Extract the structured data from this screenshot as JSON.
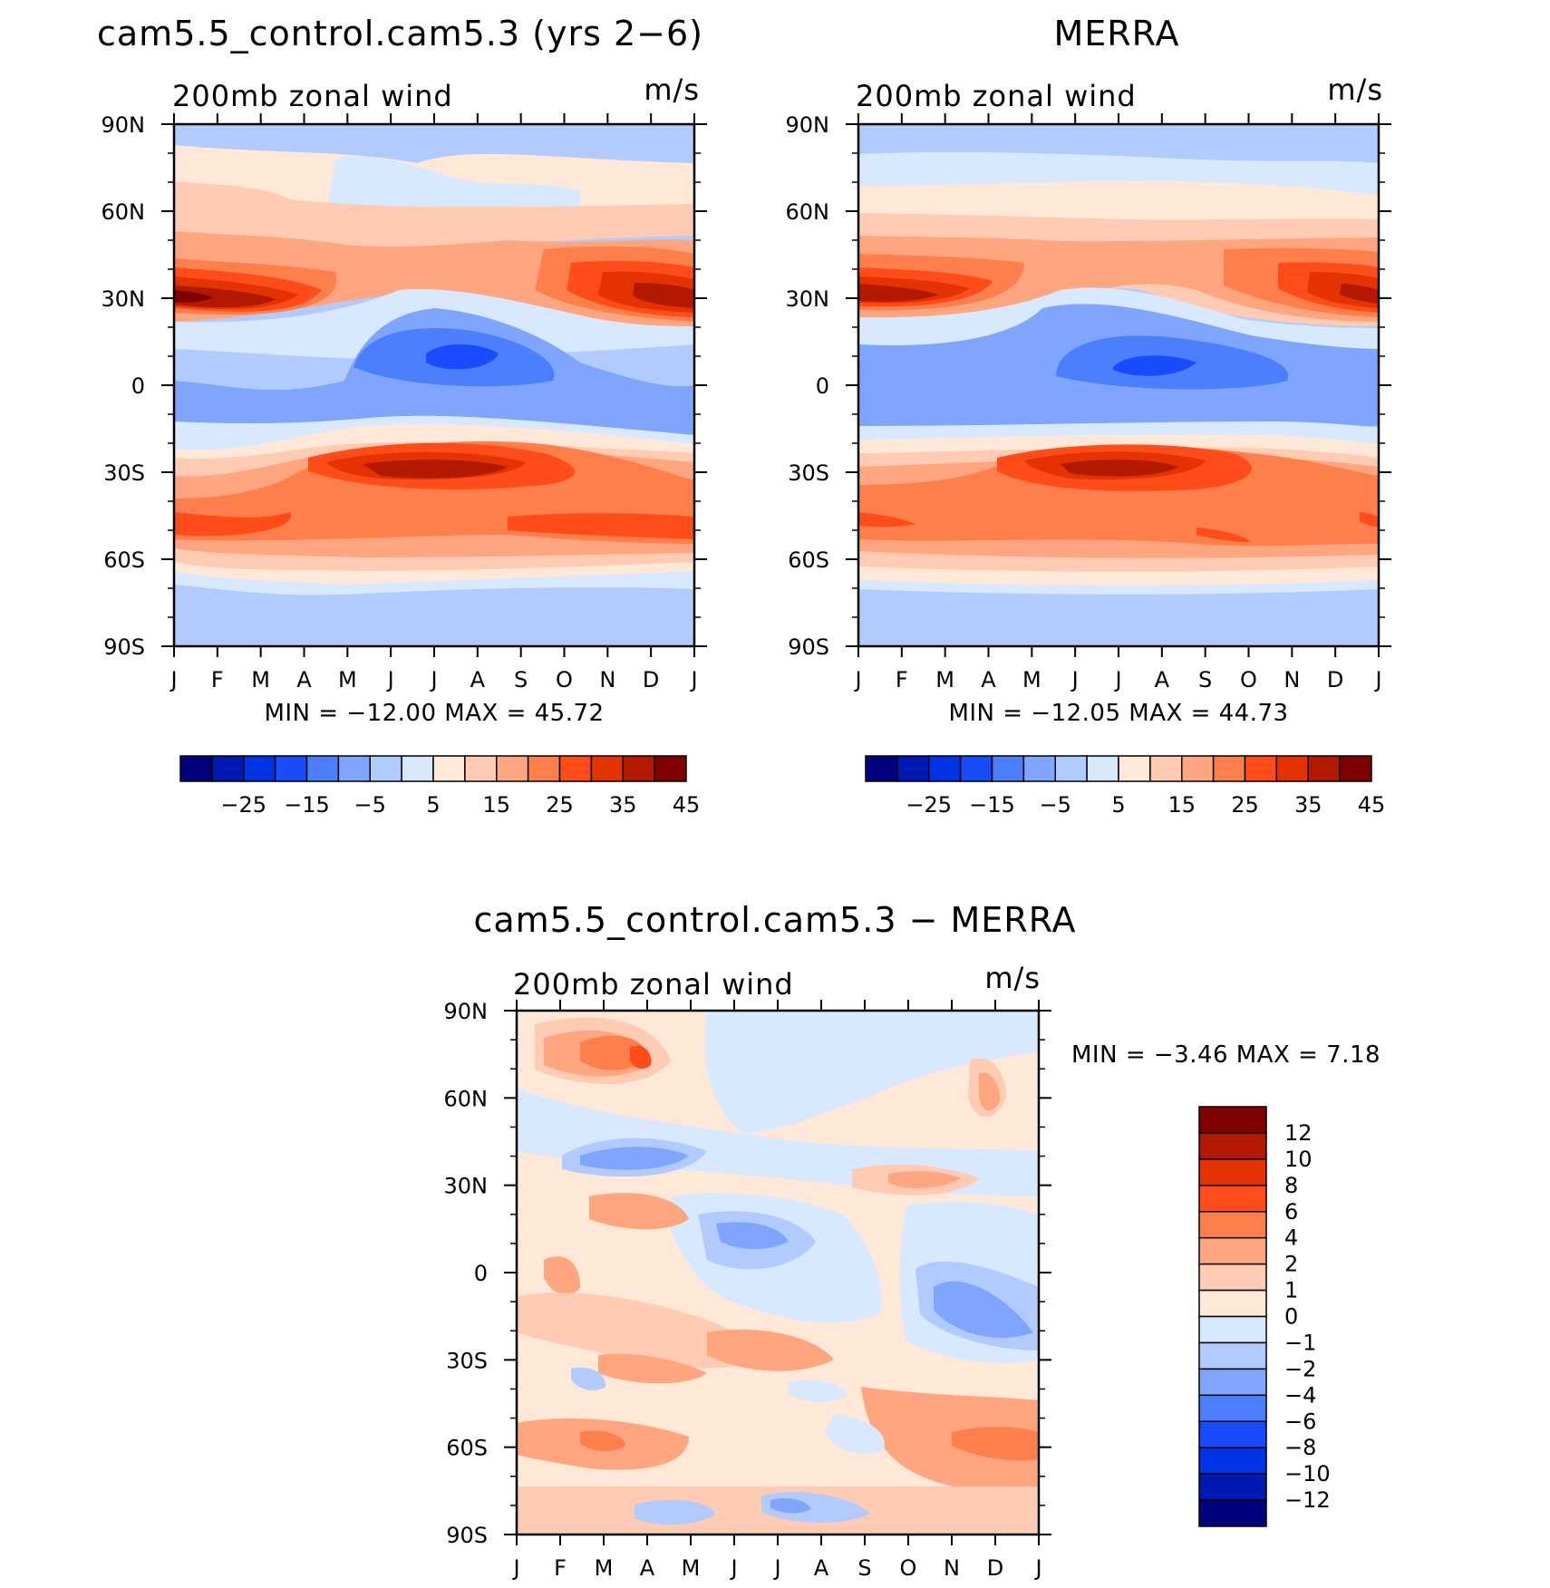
{
  "month_labels": [
    "J",
    "F",
    "M",
    "A",
    "M",
    "J",
    "J",
    "A",
    "S",
    "O",
    "N",
    "D",
    "J"
  ],
  "lat_labels": [
    "90N",
    "60N",
    "30N",
    "0",
    "30S",
    "60S",
    "90S"
  ],
  "full_palette": [
    "#00007f",
    "#0019b2",
    "#0033e5",
    "#194cff",
    "#4c7fff",
    "#7fa5ff",
    "#b2cbff",
    "#d8e8ff",
    "#ffe8d8",
    "#ffcbb2",
    "#ffa57f",
    "#ff7f4c",
    "#ff4c19",
    "#e53300",
    "#b21900",
    "#7f0000"
  ],
  "diff_palette": [
    "#00007f",
    "#0019b2",
    "#0033e5",
    "#194cff",
    "#4c7fff",
    "#7fa5ff",
    "#b2cbff",
    "#d8e8ff",
    "#ffe8d8",
    "#ffcbb2",
    "#ffa57f",
    "#ff7f4c",
    "#ff4c19",
    "#e53300",
    "#b21900",
    "#7f0000"
  ],
  "chart_data": [
    {
      "type": "heatmap",
      "title": "cam5.5_control.cam5.3 (yrs 2−6)",
      "subtitle": "200mb zonal wind",
      "units": "m/s",
      "stats": "MIN = −12.00 MAX =   45.72",
      "x": [
        "J",
        "F",
        "M",
        "A",
        "M",
        "J",
        "J",
        "A",
        "S",
        "O",
        "N",
        "D",
        "J"
      ],
      "y": [
        "90N",
        "60N",
        "30N",
        "0",
        "30S",
        "60S",
        "90S"
      ],
      "colorbar_labels": [
        "−25",
        "−15",
        "−5",
        "5",
        "15",
        "25",
        "35",
        "45"
      ],
      "levels": [
        -30,
        -25,
        -20,
        -15,
        -10,
        -5,
        0,
        5,
        10,
        15,
        20,
        25,
        30,
        35,
        40,
        45
      ],
      "features": [
        {
          "lat": 31,
          "month": 0.3,
          "value": 42
        },
        {
          "lat": 31,
          "month": 11.8,
          "value": 40
        },
        {
          "lat": -30,
          "month": 6.2,
          "value": 38
        },
        {
          "lat": -48,
          "month": 1.5,
          "value": 30
        },
        {
          "lat": 6,
          "month": 6.5,
          "value": -12
        },
        {
          "lat": 75,
          "month": 6,
          "value": 2
        }
      ]
    },
    {
      "type": "heatmap",
      "title": "MERRA",
      "subtitle": "200mb zonal wind",
      "units": "m/s",
      "stats": "MIN = −12.05 MAX =   44.73",
      "x": [
        "J",
        "F",
        "M",
        "A",
        "M",
        "J",
        "J",
        "A",
        "S",
        "O",
        "N",
        "D",
        "J"
      ],
      "y": [
        "90N",
        "60N",
        "30N",
        "0",
        "30S",
        "60S",
        "90S"
      ],
      "colorbar_labels": [
        "−25",
        "−15",
        "−5",
        "5",
        "15",
        "25",
        "35",
        "45"
      ],
      "levels": [
        -30,
        -25,
        -20,
        -15,
        -10,
        -5,
        0,
        5,
        10,
        15,
        20,
        25,
        30,
        35,
        40,
        45
      ],
      "features": [
        {
          "lat": 31,
          "month": 0.3,
          "value": 42
        },
        {
          "lat": 31,
          "month": 11.8,
          "value": 40
        },
        {
          "lat": -30,
          "month": 6.5,
          "value": 37
        },
        {
          "lat": 6,
          "month": 7,
          "value": -11
        },
        {
          "lat": 75,
          "month": 6,
          "value": 2
        }
      ]
    },
    {
      "type": "heatmap",
      "title": "cam5.5_control.cam5.3 − MERRA",
      "subtitle": "200mb zonal wind",
      "units": "m/s",
      "stats": "MIN =   −3.46 MAX =    7.18",
      "x": [
        "J",
        "F",
        "M",
        "A",
        "M",
        "J",
        "J",
        "A",
        "S",
        "O",
        "N",
        "D",
        "J"
      ],
      "y": [
        "90N",
        "60N",
        "30N",
        "0",
        "30S",
        "60S",
        "90S"
      ],
      "colorbar_labels": [
        "12",
        "10",
        "8",
        "6",
        "4",
        "2",
        "1",
        "0",
        "−1",
        "−2",
        "−4",
        "−6",
        "−8",
        "−10",
        "−12"
      ],
      "levels": [
        -14,
        -12,
        -10,
        -8,
        -6,
        -4,
        -2,
        -1,
        0,
        1,
        2,
        4,
        6,
        8,
        10,
        12,
        14
      ],
      "features": [
        {
          "lat": 73,
          "month": 3,
          "value": 5
        },
        {
          "lat": 65,
          "month": 1.5,
          "value": 3
        },
        {
          "lat": 62,
          "month": 11,
          "value": 3
        },
        {
          "lat": 42,
          "month": 2.5,
          "value": -2.5
        },
        {
          "lat": 15,
          "month": 5.5,
          "value": -2.5
        },
        {
          "lat": -10,
          "month": 11,
          "value": -3
        }
      ]
    }
  ]
}
